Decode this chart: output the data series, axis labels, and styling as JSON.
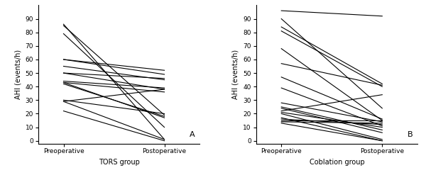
{
  "tors_data": [
    [
      86,
      1
    ],
    [
      85,
      19
    ],
    [
      79,
      10
    ],
    [
      60,
      52
    ],
    [
      60,
      49
    ],
    [
      55,
      45
    ],
    [
      50,
      46
    ],
    [
      50,
      38
    ],
    [
      44,
      39
    ],
    [
      43,
      36
    ],
    [
      43,
      17
    ],
    [
      42,
      18
    ],
    [
      30,
      20
    ],
    [
      29,
      38
    ],
    [
      29,
      1
    ],
    [
      22,
      0
    ]
  ],
  "coblation_data": [
    [
      96,
      92
    ],
    [
      90,
      24
    ],
    [
      84,
      42
    ],
    [
      81,
      40
    ],
    [
      68,
      15
    ],
    [
      57,
      41
    ],
    [
      47,
      16
    ],
    [
      39,
      11
    ],
    [
      28,
      14
    ],
    [
      25,
      8
    ],
    [
      24,
      6
    ],
    [
      22,
      34
    ],
    [
      21,
      10
    ],
    [
      20,
      1
    ],
    [
      17,
      0
    ],
    [
      16,
      12
    ],
    [
      15,
      15
    ],
    [
      14,
      13
    ],
    [
      13,
      0
    ]
  ],
  "ylabel": "AHI (events/h)",
  "tors_xlabel": "TORS group",
  "coblation_xlabel": "Coblation group",
  "xtick_labels": [
    "Preoperative",
    "Postoperative"
  ],
  "ylim": [
    -2,
    100
  ],
  "yticks": [
    0,
    10,
    20,
    30,
    40,
    50,
    60,
    70,
    80,
    90
  ],
  "label_A": "A",
  "label_B": "B",
  "line_color": "#000000",
  "line_width": 0.8,
  "background_color": "#ffffff",
  "title_fontsize": 7,
  "ylabel_fontsize": 7,
  "xlabel_fontsize": 7,
  "tick_fontsize": 6.5,
  "label_fontsize": 8
}
